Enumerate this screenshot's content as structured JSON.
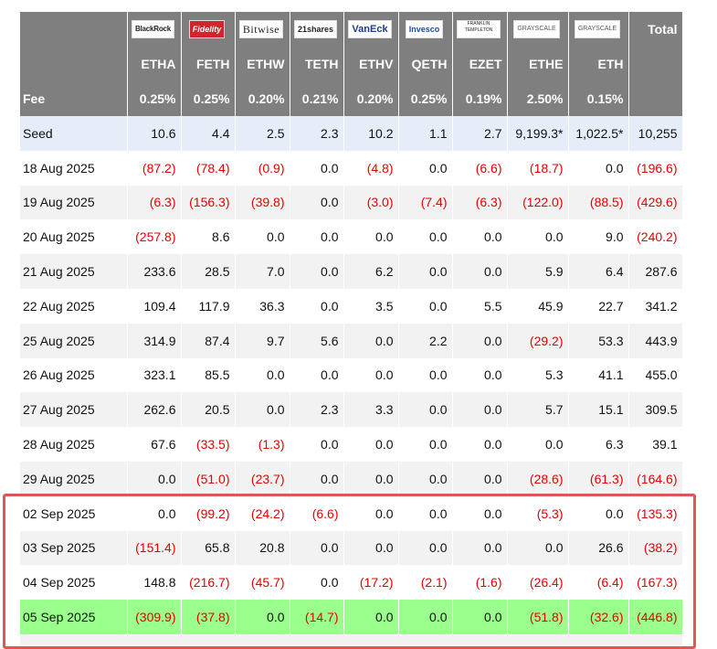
{
  "issuers": [
    {
      "name": "BlackRock",
      "logo": "blackrock-logo"
    },
    {
      "name": "Fidelity",
      "logo": "fidelity-logo"
    },
    {
      "name": "Bitwise",
      "logo": "bitwise-logo"
    },
    {
      "name": "21shares",
      "logo": "21shares-logo"
    },
    {
      "name": "VanEck",
      "logo": "vaneck-logo"
    },
    {
      "name": "Invesco",
      "logo": "invesco-logo"
    },
    {
      "name": "FRANKLIN TEMPLETON",
      "logo": "franklin-templeton-logo"
    },
    {
      "name": "GRAYSCALE",
      "logo": "grayscale-logo"
    },
    {
      "name": "GRAYSCALE",
      "logo": "grayscale-logo"
    }
  ],
  "total_label": "Total",
  "tickers": [
    "ETHA",
    "FETH",
    "ETHW",
    "TETH",
    "ETHV",
    "QETH",
    "EZET",
    "ETHE",
    "ETH"
  ],
  "fee_label": "Fee",
  "fees": [
    "0.25%",
    "0.25%",
    "0.20%",
    "0.21%",
    "0.20%",
    "0.25%",
    "0.19%",
    "2.50%",
    "0.15%"
  ],
  "rows": [
    {
      "label": "Seed",
      "style": "seed",
      "values": [
        "10.6",
        "4.4",
        "2.5",
        "2.3",
        "10.2",
        "1.1",
        "2.7",
        "9,199.3*",
        "1,022.5*",
        "10,255"
      ]
    },
    {
      "label": "18 Aug 2025",
      "style": "plain",
      "values": [
        "(87.2)",
        "(78.4)",
        "(0.9)",
        "0.0",
        "(4.8)",
        "0.0",
        "(6.6)",
        "(18.7)",
        "0.0",
        "(196.6)"
      ]
    },
    {
      "label": "19 Aug 2025",
      "style": "alt",
      "values": [
        "(6.3)",
        "(156.3)",
        "(39.8)",
        "0.0",
        "(3.0)",
        "(7.4)",
        "(6.3)",
        "(122.0)",
        "(88.5)",
        "(429.6)"
      ]
    },
    {
      "label": "20 Aug 2025",
      "style": "plain",
      "values": [
        "(257.8)",
        "8.6",
        "0.0",
        "0.0",
        "0.0",
        "0.0",
        "0.0",
        "0.0",
        "9.0",
        "(240.2)"
      ]
    },
    {
      "label": "21 Aug 2025",
      "style": "alt",
      "values": [
        "233.6",
        "28.5",
        "7.0",
        "0.0",
        "6.2",
        "0.0",
        "0.0",
        "5.9",
        "6.4",
        "287.6"
      ]
    },
    {
      "label": "22 Aug 2025",
      "style": "plain",
      "values": [
        "109.4",
        "117.9",
        "36.3",
        "0.0",
        "3.5",
        "0.0",
        "5.5",
        "45.9",
        "22.7",
        "341.2"
      ]
    },
    {
      "label": "25 Aug 2025",
      "style": "alt",
      "values": [
        "314.9",
        "87.4",
        "9.7",
        "5.6",
        "0.0",
        "2.2",
        "0.0",
        "(29.2)",
        "53.3",
        "443.9"
      ]
    },
    {
      "label": "26 Aug 2025",
      "style": "plain",
      "values": [
        "323.1",
        "85.5",
        "0.0",
        "0.0",
        "0.0",
        "0.0",
        "0.0",
        "5.3",
        "41.1",
        "455.0"
      ]
    },
    {
      "label": "27 Aug 2025",
      "style": "alt",
      "values": [
        "262.6",
        "20.5",
        "0.0",
        "2.3",
        "3.3",
        "0.0",
        "0.0",
        "5.7",
        "15.1",
        "309.5"
      ]
    },
    {
      "label": "28 Aug 2025",
      "style": "plain",
      "values": [
        "67.6",
        "(33.5)",
        "(1.3)",
        "0.0",
        "0.0",
        "0.0",
        "0.0",
        "0.0",
        "6.3",
        "39.1"
      ]
    },
    {
      "label": "29 Aug 2025",
      "style": "alt",
      "values": [
        "0.0",
        "(51.0)",
        "(23.7)",
        "0.0",
        "0.0",
        "0.0",
        "0.0",
        "(28.6)",
        "(61.3)",
        "(164.6)"
      ]
    },
    {
      "label": "02 Sep 2025",
      "style": "plain",
      "values": [
        "0.0",
        "(99.2)",
        "(24.2)",
        "(6.6)",
        "0.0",
        "0.0",
        "0.0",
        "(5.3)",
        "0.0",
        "(135.3)"
      ]
    },
    {
      "label": "03 Sep 2025",
      "style": "alt",
      "values": [
        "(151.4)",
        "65.8",
        "20.8",
        "0.0",
        "0.0",
        "0.0",
        "0.0",
        "0.0",
        "26.6",
        "(38.2)"
      ]
    },
    {
      "label": "04 Sep 2025",
      "style": "plain",
      "values": [
        "148.8",
        "(216.7)",
        "(45.7)",
        "0.0",
        "(17.2)",
        "(2.1)",
        "(1.6)",
        "(26.4)",
        "(6.4)",
        "(167.3)"
      ]
    },
    {
      "label": "05 Sep 2025",
      "style": "green",
      "values": [
        "(309.9)",
        "(37.8)",
        "0.0",
        "(14.7)",
        "0.0",
        "0.0",
        "0.0",
        "(51.8)",
        "(32.6)",
        "(446.8)"
      ]
    }
  ],
  "colors": {
    "header_bg": "#7f7f7f",
    "negative": "#e60000",
    "seed_bg": "#e6ecf8",
    "alt_bg": "#f2f2f2",
    "highlight_row_bg": "#9aff8c",
    "highlight_box": "#e05656"
  }
}
